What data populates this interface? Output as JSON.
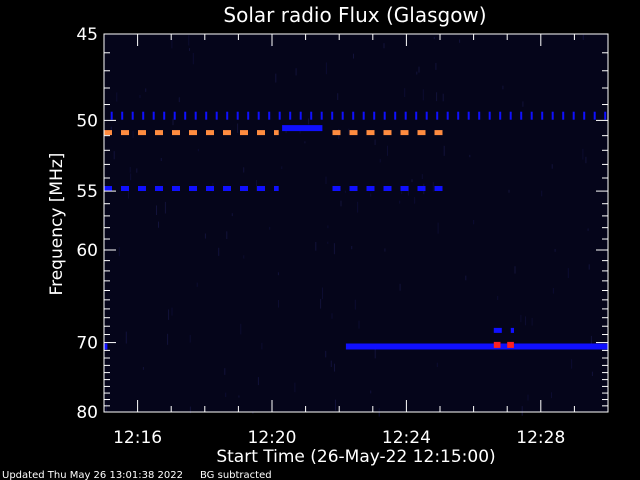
{
  "chart_data": {
    "type": "heatmap",
    "title": "Solar radio Flux (Glasgow)",
    "xlabel": "Start Time (26-May-22 12:15:00)",
    "ylabel": "Frequency [MHz]",
    "x_range_minutes": [
      0,
      15
    ],
    "x_ticks": [
      {
        "label": "12:16",
        "minute": 1
      },
      {
        "label": "12:20",
        "minute": 5
      },
      {
        "label": "12:24",
        "minute": 9
      },
      {
        "label": "12:28",
        "minute": 13
      }
    ],
    "y_range_mhz": [
      45,
      80
    ],
    "y_scale": "reciprocal",
    "y_ticks": [
      45,
      50,
      55,
      60,
      70,
      80
    ],
    "background_note": "BG subtracted",
    "colors": {
      "low": "#05051a",
      "medium": "#1010ff",
      "high": "#ff8c40",
      "peak": "#ff2020"
    },
    "features": [
      {
        "name": "",
        "freq_mhz": 49.7,
        "start_min": 0.2,
        "end_min": 15,
        "level": "medium",
        "style": "ticks"
      },
      {
        "name": "",
        "freq_mhz": 50.8,
        "start_min": 0.0,
        "end_min": 5.2,
        "level": "high",
        "style": "dashed"
      },
      {
        "name": "",
        "freq_mhz": 50.8,
        "start_min": 6.8,
        "end_min": 10.3,
        "level": "high",
        "style": "dashed"
      },
      {
        "name": "",
        "freq_mhz": 50.5,
        "start_min": 5.3,
        "end_min": 6.5,
        "level": "medium",
        "style": "solid"
      },
      {
        "name": "",
        "freq_mhz": 54.8,
        "start_min": 0.0,
        "end_min": 5.2,
        "level": "medium",
        "style": "dashed"
      },
      {
        "name": "",
        "freq_mhz": 54.8,
        "start_min": 6.8,
        "end_min": 10.3,
        "level": "medium",
        "style": "dashed"
      },
      {
        "name": "",
        "freq_mhz": 70.5,
        "start_min": 7.2,
        "end_min": 15,
        "level": "medium",
        "style": "solid"
      },
      {
        "name": "",
        "freq_mhz": 70.5,
        "start_min": 0.0,
        "end_min": 0.1,
        "level": "medium",
        "style": "solid"
      },
      {
        "name": "",
        "freq_mhz": 70.3,
        "start_min": 11.6,
        "end_min": 11.8,
        "level": "peak",
        "style": "solid"
      },
      {
        "name": "",
        "freq_mhz": 70.3,
        "start_min": 12.0,
        "end_min": 12.2,
        "level": "peak",
        "style": "solid"
      },
      {
        "name": "",
        "freq_mhz": 68.5,
        "start_min": 11.6,
        "end_min": 12.2,
        "level": "medium",
        "style": "dashed"
      }
    ]
  },
  "footer": {
    "updated": "Updated Thu May 26 13:01:38 2022",
    "note": "BG subtracted"
  }
}
